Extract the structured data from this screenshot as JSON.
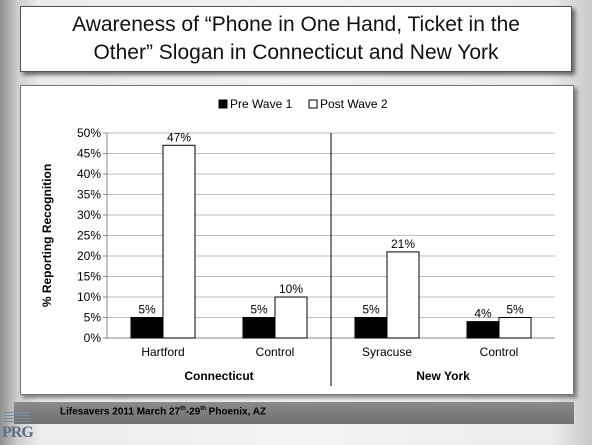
{
  "slide": {
    "title_line1": "Awareness of “Phone in One Hand, Ticket in the",
    "title_line2": "Other” Slogan in Connecticut and New York",
    "footer": {
      "prefix": "Lifesavers 2011 March 27",
      "sup1": "th",
      "mid": "-29",
      "sup2": "th",
      "suffix": " Phoenix, AZ"
    },
    "logo_text": "PRG"
  },
  "chart_data": {
    "type": "bar",
    "title": "",
    "ylabel": "% Reporting Recognition",
    "ylim": [
      0,
      50
    ],
    "yticks": [
      "0%",
      "5%",
      "10%",
      "15%",
      "20%",
      "25%",
      "30%",
      "35%",
      "40%",
      "45%",
      "50%"
    ],
    "grid": true,
    "legend_position": "top-center",
    "categories": [
      "Hartford",
      "Control",
      "Syracuse",
      "Control"
    ],
    "groups": [
      {
        "label": "Connecticut",
        "categories": [
          "Hartford",
          "Control"
        ]
      },
      {
        "label": "New York",
        "categories": [
          "Syracuse",
          "Control"
        ]
      }
    ],
    "series": [
      {
        "name": "Pre Wave 1",
        "values": [
          5,
          5,
          5,
          4
        ],
        "labels": [
          "5%",
          "5%",
          "5%",
          "4%"
        ],
        "color": "#000000"
      },
      {
        "name": "Post Wave 2",
        "values": [
          47,
          10,
          21,
          5
        ],
        "labels": [
          "47%",
          "10%",
          "21%",
          "5%"
        ],
        "color": "#ffffff"
      }
    ]
  }
}
